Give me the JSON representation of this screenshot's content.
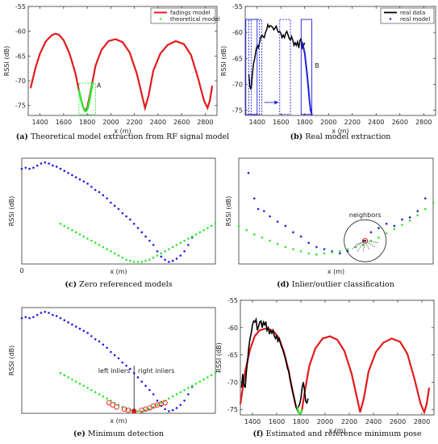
{
  "colors": {
    "red": "#e41a1c",
    "green": "#2ee62e",
    "blue": "#1f1fe0",
    "black": "#000000"
  },
  "chart_data": [
    {
      "id": "a",
      "type": "line",
      "caption_letter": "(a)",
      "caption_text": "Theoretical model extraction from RF signal model",
      "xlabel": "x (m)",
      "ylabel": "RSSI (dB)",
      "xlim": [
        1300,
        2900
      ],
      "ylim": [
        -77,
        -55
      ],
      "xticks": [
        1400,
        1600,
        1800,
        2000,
        2200,
        2400,
        2600,
        2800
      ],
      "yticks": [
        -55,
        -60,
        -65,
        -70,
        -75
      ],
      "legend": [
        "fadings model",
        "theoretical model"
      ],
      "series": [
        {
          "name": "fadings model",
          "x": [
            1320,
            1360,
            1400,
            1450,
            1500,
            1530,
            1560,
            1600,
            1650,
            1700,
            1730,
            1760,
            1780,
            1800,
            1830,
            1870,
            1920,
            1980,
            2040,
            2100,
            2160,
            2220,
            2260,
            2290,
            2320,
            2360,
            2420,
            2480,
            2550,
            2620,
            2680,
            2740,
            2790,
            2820,
            2840,
            2860
          ],
          "y": [
            -71.5,
            -67.5,
            -64.5,
            -62.0,
            -60.8,
            -60.5,
            -60.7,
            -61.8,
            -64.5,
            -68.5,
            -72.0,
            -75.0,
            -76.0,
            -75.5,
            -72.0,
            -67.0,
            -63.8,
            -62.0,
            -61.6,
            -62.2,
            -64.3,
            -68.5,
            -72.5,
            -75.5,
            -73.0,
            -68.0,
            -64.5,
            -62.8,
            -62.0,
            -62.6,
            -64.8,
            -69.5,
            -74.0,
            -75.5,
            -74.0,
            -71.0
          ]
        },
        {
          "name": "theoretical model",
          "x": [
            1730,
            1745,
            1760,
            1775,
            1785,
            1795,
            1805,
            1815,
            1830,
            1845
          ],
          "y": [
            -72.0,
            -73.5,
            -75.0,
            -75.9,
            -76.2,
            -76.0,
            -75.5,
            -74.5,
            -72.5,
            -70.5
          ]
        }
      ],
      "annotations": [
        {
          "text": "A"
        }
      ]
    },
    {
      "id": "b",
      "type": "line",
      "caption_letter": "(b)",
      "caption_text": "Real model extraction",
      "xlabel": "x (m)",
      "ylabel": "RSSI (dB)",
      "xlim": [
        1300,
        2900
      ],
      "ylim": [
        -76,
        -55
      ],
      "xticks": [
        1400,
        1600,
        1800,
        2000,
        2200,
        2400,
        2600,
        2800
      ],
      "yticks": [
        -55,
        -60,
        -65,
        -70,
        -75
      ],
      "legend": [
        "real data",
        "real model"
      ],
      "series": [
        {
          "name": "real data",
          "x": [
            1330,
            1340,
            1350,
            1360,
            1370,
            1380,
            1390,
            1400,
            1410,
            1420,
            1430,
            1440,
            1450,
            1460,
            1470,
            1480,
            1490,
            1500,
            1510,
            1520,
            1530,
            1540,
            1550,
            1560,
            1570,
            1580,
            1590,
            1600,
            1610,
            1620,
            1630,
            1640,
            1650,
            1660,
            1670,
            1680,
            1690,
            1700,
            1710,
            1720,
            1730,
            1740,
            1750,
            1760,
            1770,
            1780,
            1790,
            1800
          ],
          "y": [
            -68.0,
            -70.5,
            -71.0,
            -68.0,
            -66.0,
            -65.0,
            -63.5,
            -62.5,
            -63.0,
            -62.0,
            -61.0,
            -60.5,
            -60.8,
            -61.0,
            -60.0,
            -59.5,
            -58.5,
            -59.0,
            -58.7,
            -58.8,
            -59.0,
            -59.5,
            -59.2,
            -58.8,
            -59.5,
            -60.0,
            -59.8,
            -60.2,
            -61.0,
            -60.5,
            -61.0,
            -60.2,
            -59.8,
            -60.5,
            -61.2,
            -61.5,
            -60.8,
            -61.5,
            -62.5,
            -62.0,
            -62.5,
            -61.8,
            -63.0,
            -61.5,
            -61.2,
            -63.0,
            -62.5,
            -62.0
          ]
        },
        {
          "name": "real model",
          "x": [
            1780,
            1790,
            1800,
            1810,
            1820,
            1830,
            1840,
            1850,
            1860
          ],
          "y": [
            -62.0,
            -63.0,
            -64.0,
            -66.0,
            -68.0,
            -70.5,
            -73.0,
            -75.0,
            -75.8
          ]
        }
      ],
      "annotations": [
        {
          "text": "B"
        }
      ]
    },
    {
      "id": "c",
      "type": "scatter",
      "caption_letter": "(c)",
      "caption_text": "Zero referenced models",
      "xlabel": "x (m)",
      "ylabel": "RSSI (dB)",
      "xticks": [
        0
      ],
      "tick_labels": [
        "0"
      ],
      "xlim": [
        0,
        100
      ],
      "ylim": [
        0,
        100
      ],
      "series": [
        {
          "name": "",
          "x": [
            0,
            2,
            4,
            6,
            8,
            10,
            12,
            14,
            16,
            18,
            20,
            22,
            24,
            26,
            28,
            30,
            32,
            34,
            36,
            38,
            40,
            42,
            44,
            46,
            48,
            50,
            52,
            54,
            56,
            58,
            60,
            62,
            64,
            66,
            68,
            70,
            72,
            74,
            76,
            78,
            80,
            82,
            84,
            86,
            88
          ],
          "y": [
            90,
            91,
            90,
            91,
            93,
            95,
            96,
            95,
            93,
            92,
            90,
            88,
            86,
            84,
            82,
            80,
            78,
            76,
            73,
            70,
            68,
            65,
            62,
            58,
            55,
            52,
            48,
            45,
            42,
            38,
            34,
            30,
            26,
            22,
            18,
            12,
            7,
            4,
            2,
            3,
            5,
            8,
            12,
            18,
            25
          ]
        },
        {
          "name": "",
          "x": [
            20,
            22,
            24,
            26,
            28,
            30,
            32,
            34,
            36,
            38,
            40,
            42,
            44,
            46,
            48,
            50,
            52,
            54,
            56,
            58,
            60,
            62,
            64,
            66,
            68,
            70,
            72,
            74,
            76,
            78,
            80,
            82,
            84,
            86,
            88,
            90,
            92,
            94,
            96,
            98,
            100
          ],
          "y": [
            38,
            36,
            34,
            32,
            30,
            28,
            26,
            24,
            22,
            20,
            18,
            16,
            14,
            12,
            10,
            8,
            6,
            4,
            3,
            2,
            2,
            2,
            3,
            4,
            6,
            8,
            10,
            12,
            14,
            16,
            18,
            20,
            22,
            24,
            26,
            28,
            30,
            32,
            34,
            36,
            38
          ]
        }
      ]
    },
    {
      "id": "d",
      "type": "scatter",
      "caption_letter": "(d)",
      "caption_text": "Inlier/outlier classification",
      "xlabel": "x (m)",
      "ylabel": "RSSI (dB)",
      "xlim": [
        0,
        100
      ],
      "ylim": [
        0,
        100
      ],
      "series": [
        {
          "name": "",
          "x": [
            5,
            8,
            10,
            13,
            16,
            20,
            24,
            28,
            32,
            36,
            40,
            44,
            48,
            52,
            56,
            60,
            64,
            68,
            72,
            76,
            80,
            84,
            88,
            92,
            96
          ],
          "y": [
            86,
            62,
            52,
            50,
            45,
            40,
            36,
            30,
            26,
            20,
            16,
            14,
            12,
            10,
            12,
            16,
            22,
            30,
            34,
            38,
            36,
            42,
            44,
            50,
            62
          ]
        },
        {
          "name": "",
          "x": [
            0,
            4,
            8,
            12,
            16,
            20,
            24,
            28,
            32,
            36,
            40,
            44,
            48,
            52,
            56,
            60,
            64,
            68,
            72,
            76,
            80,
            84,
            88,
            92,
            96,
            100
          ],
          "y": [
            36,
            32,
            28,
            25,
            22,
            19,
            16,
            14,
            12,
            10,
            9,
            10,
            11,
            12,
            14,
            16,
            18,
            22,
            25,
            29,
            33,
            37,
            41,
            46,
            52,
            58
          ]
        }
      ],
      "annotations": [
        {
          "text": "neighbors"
        }
      ]
    },
    {
      "id": "e",
      "type": "scatter",
      "caption_letter": "(e)",
      "caption_text": "Minimum detection",
      "xlabel": "x (m)",
      "ylabel": "RSSI (dB)",
      "xlim": [
        0,
        100
      ],
      "ylim": [
        0,
        100
      ],
      "series": [
        {
          "name": "",
          "x": [
            0,
            2,
            4,
            6,
            8,
            10,
            12,
            14,
            16,
            18,
            20,
            22,
            24,
            26,
            28,
            30,
            32,
            34,
            36,
            38,
            40,
            42,
            44,
            46,
            48,
            50,
            52,
            54,
            56,
            58,
            60,
            62,
            64,
            66,
            68,
            70,
            72,
            74,
            76,
            78,
            80,
            82,
            84,
            86,
            88
          ],
          "y": [
            90,
            91,
            90,
            91,
            93,
            95,
            96,
            95,
            93,
            92,
            90,
            88,
            86,
            84,
            82,
            80,
            78,
            76,
            73,
            70,
            68,
            65,
            62,
            58,
            55,
            52,
            48,
            45,
            42,
            38,
            34,
            30,
            26,
            22,
            18,
            12,
            7,
            4,
            2,
            3,
            5,
            8,
            12,
            18,
            25
          ]
        },
        {
          "name": "",
          "x": [
            20,
            22,
            24,
            26,
            28,
            30,
            32,
            34,
            36,
            38,
            40,
            42,
            44,
            46,
            48,
            50,
            52,
            54,
            56,
            58,
            60,
            62,
            64,
            66,
            68,
            70,
            72,
            74,
            76,
            78,
            80,
            82,
            84,
            86,
            88,
            90,
            92,
            94,
            96,
            98,
            100
          ],
          "y": [
            38,
            36,
            34,
            32,
            30,
            28,
            26,
            24,
            22,
            20,
            18,
            16,
            14,
            12,
            10,
            8,
            6,
            4,
            3,
            2,
            2,
            2,
            3,
            4,
            6,
            8,
            10,
            12,
            14,
            16,
            18,
            20,
            22,
            24,
            26,
            28,
            30,
            32,
            34,
            36,
            38
          ]
        }
      ],
      "annotations": [
        {
          "text": "left inliers"
        },
        {
          "text": "right inliers"
        }
      ]
    },
    {
      "id": "f",
      "type": "line",
      "caption_letter": "(f)",
      "caption_text": "Estimated and reference minimum pose",
      "xlabel": "x (m)",
      "ylabel": "RSSI (dB)",
      "xlim": [
        1300,
        2900
      ],
      "ylim": [
        -76,
        -55
      ],
      "xticks": [
        1400,
        1600,
        1800,
        2000,
        2200,
        2400,
        2600,
        2800
      ],
      "yticks": [
        -55,
        -60,
        -65,
        -70,
        -75
      ],
      "series": [
        {
          "name": "",
          "x": [
            1300,
            1340,
            1380,
            1420,
            1460,
            1500,
            1540,
            1580,
            1620,
            1660,
            1700,
            1730,
            1760,
            1780,
            1790,
            1800,
            1810,
            1830,
            1870,
            1920,
            1980,
            2040,
            2100,
            2160,
            2220,
            2260,
            2290,
            2320,
            2360,
            2420,
            2480,
            2550,
            2620,
            2680,
            2740,
            2790,
            2820,
            2840,
            2860
          ],
          "y": [
            -74.0,
            -68.0,
            -64.0,
            -61.5,
            -60.5,
            -60.2,
            -60.3,
            -60.8,
            -62.0,
            -64.5,
            -68.0,
            -71.5,
            -74.5,
            -75.5,
            -75.8,
            -75.6,
            -75.0,
            -72.0,
            -67.0,
            -63.8,
            -62.0,
            -61.6,
            -62.2,
            -64.3,
            -68.5,
            -72.5,
            -75.5,
            -73.0,
            -68.0,
            -64.5,
            -62.8,
            -62.0,
            -62.6,
            -64.8,
            -69.5,
            -74.0,
            -75.5,
            -74.0,
            -71.0
          ]
        },
        {
          "name": "",
          "x": [
            1310,
            1320,
            1330,
            1340,
            1350,
            1360,
            1370,
            1380,
            1390,
            1400,
            1410,
            1420,
            1430,
            1440,
            1450,
            1460,
            1470,
            1480,
            1490,
            1500,
            1510,
            1520,
            1530,
            1540,
            1550,
            1560,
            1570,
            1580,
            1590,
            1600,
            1610,
            1620,
            1630,
            1640,
            1650,
            1660,
            1670,
            1680,
            1690,
            1700,
            1710,
            1720,
            1730,
            1740,
            1750,
            1760,
            1770,
            1780,
            1790,
            1800,
            1810,
            1820,
            1830,
            1840,
            1850,
            1860
          ],
          "y": [
            -71.0,
            -68.5,
            -70.5,
            -71.0,
            -68.0,
            -66.0,
            -63.5,
            -62.0,
            -61.0,
            -59.5,
            -58.8,
            -59.0,
            -58.5,
            -60.5,
            -59.8,
            -59.0,
            -58.8,
            -60.0,
            -59.0,
            -59.5,
            -58.9,
            -60.5,
            -60.0,
            -61.2,
            -60.5,
            -61.0,
            -60.5,
            -61.5,
            -62.0,
            -61.5,
            -62.5,
            -62.0,
            -62.8,
            -63.5,
            -64.0,
            -64.8,
            -65.5,
            -66.5,
            -67.5,
            -68.0,
            -69.5,
            -70.5,
            -71.5,
            -72.5,
            -73.5,
            -74.5,
            -75.0,
            -74.5,
            -74.0,
            -73.0,
            -71.0,
            -70.0,
            -71.5,
            -73.5,
            -73.8,
            -73.0
          ]
        },
        {
          "name": "",
          "x": [
            1770,
            1780,
            1790,
            1800,
            1810
          ],
          "y": [
            -74.5,
            -75.5,
            -75.8,
            -75.6,
            -75.0
          ]
        }
      ]
    }
  ]
}
